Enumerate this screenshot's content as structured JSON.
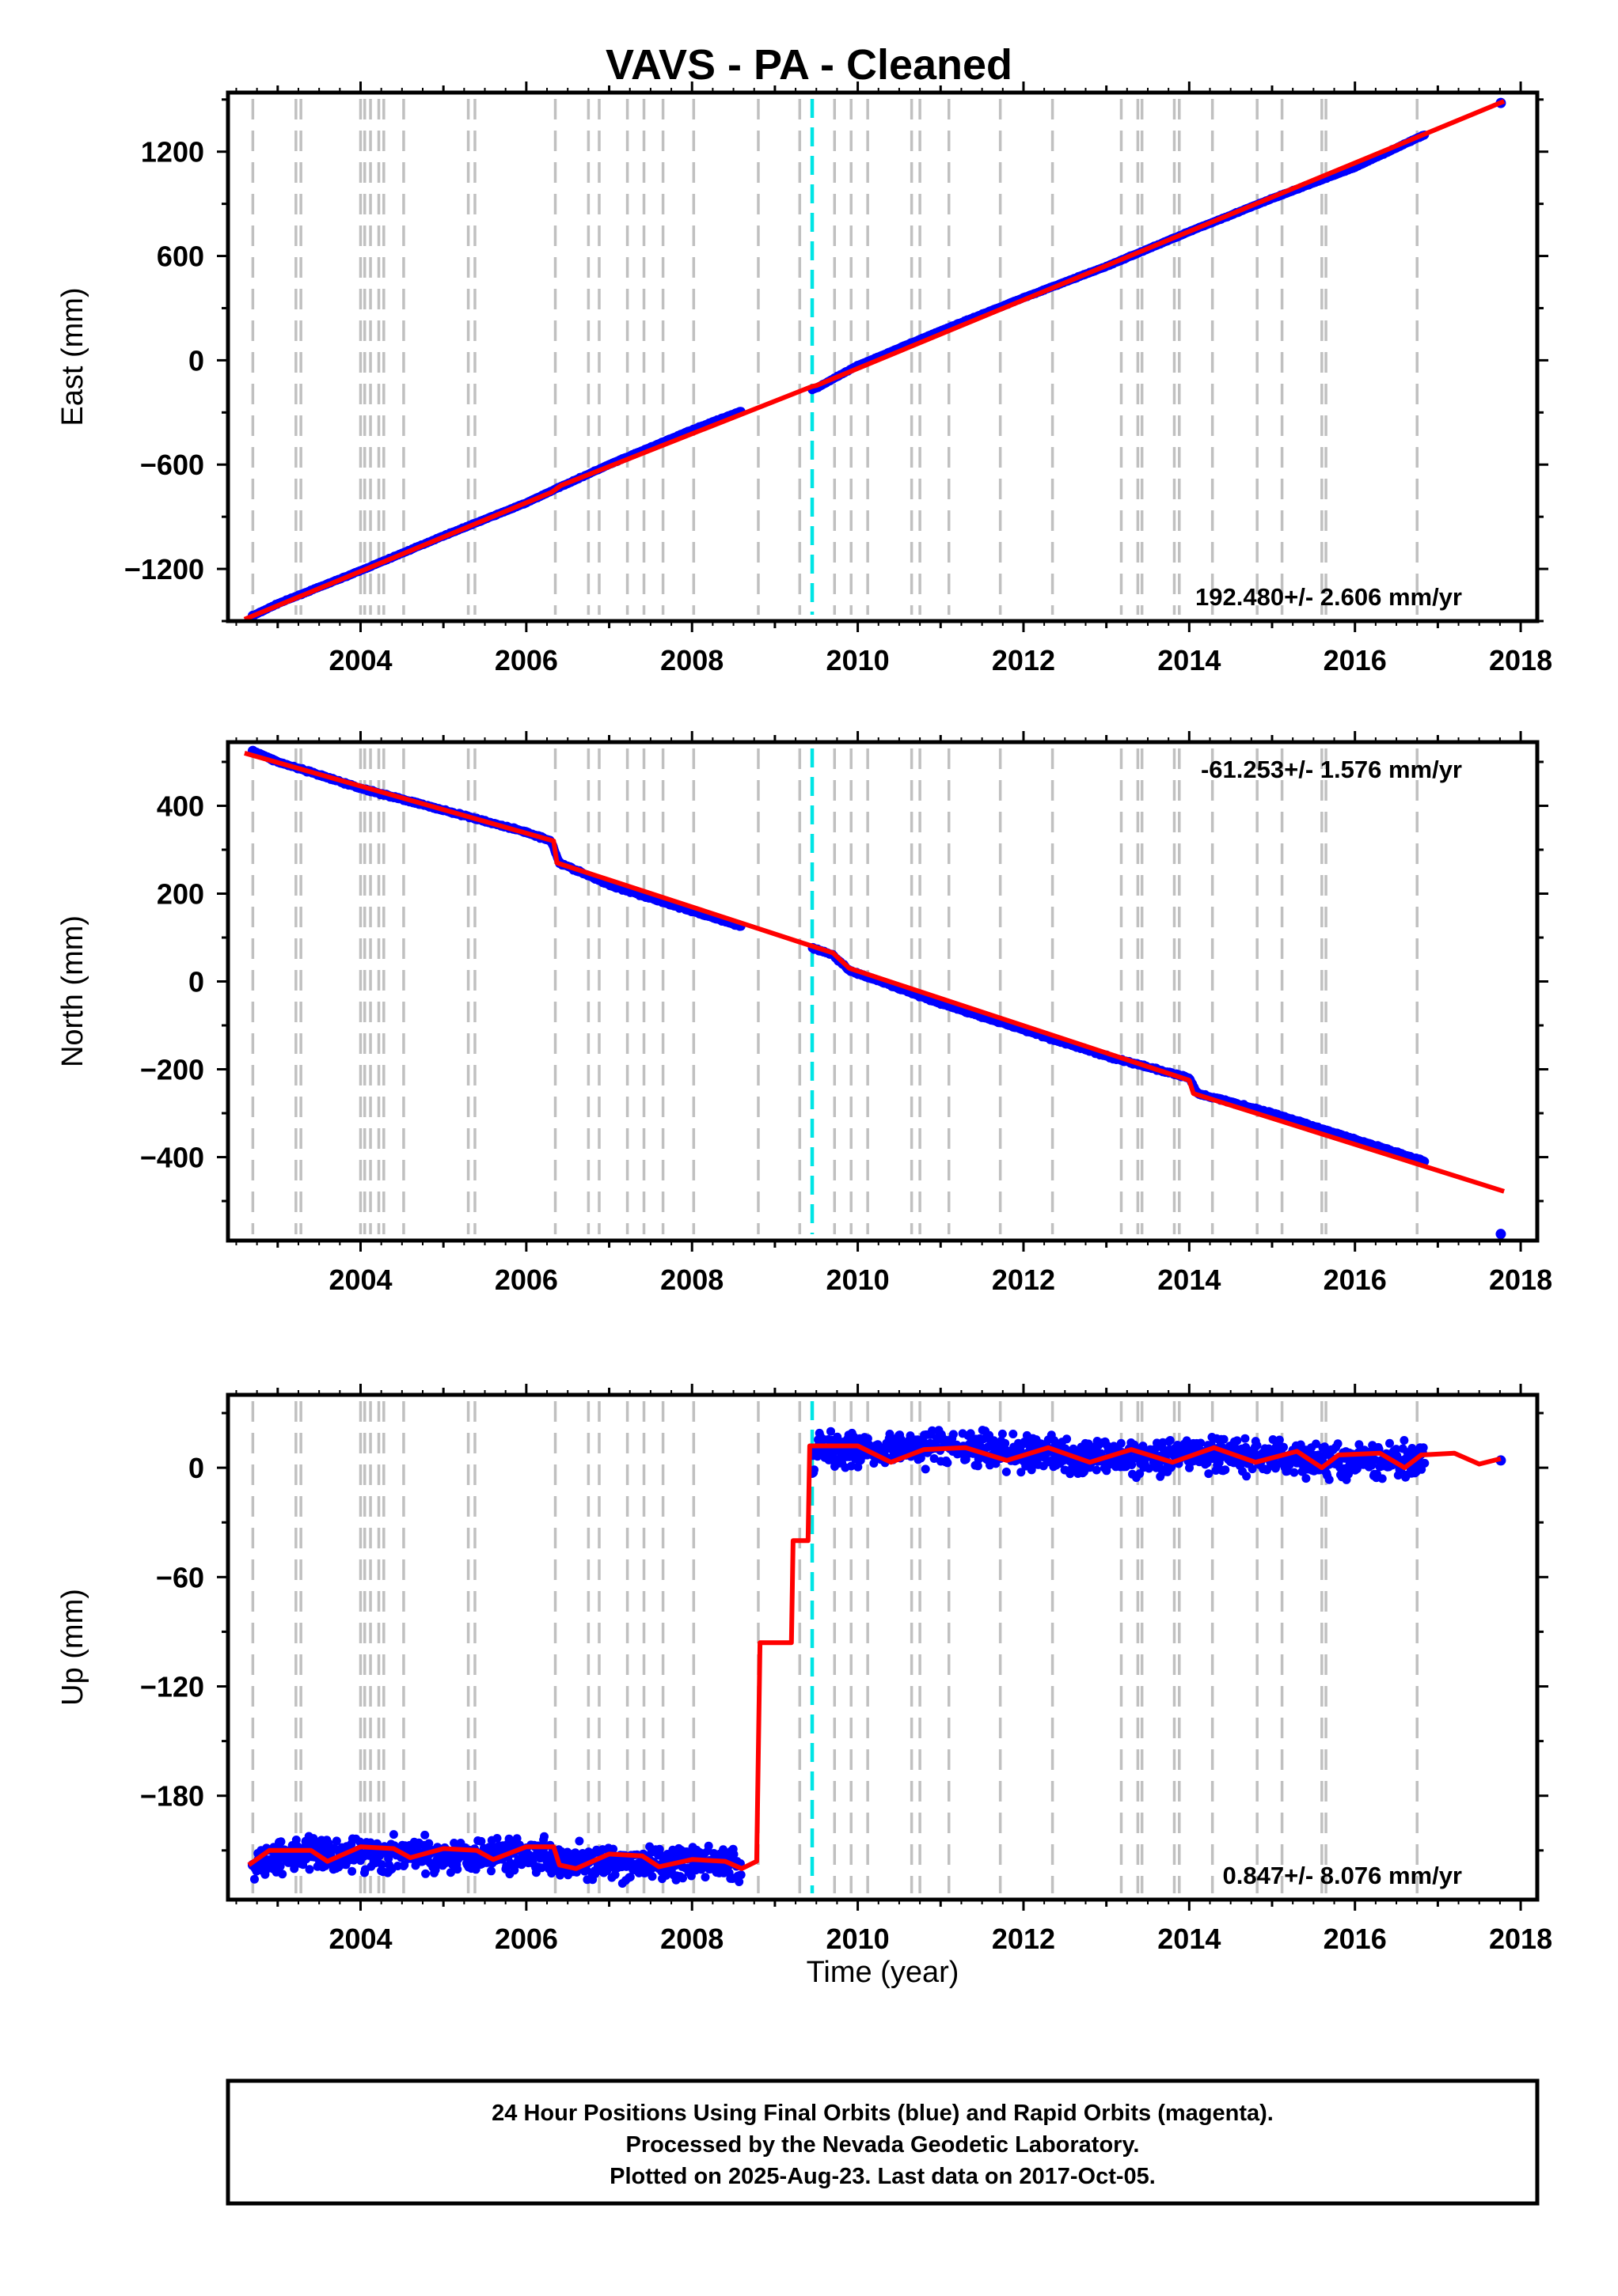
{
  "title": "VAVS  - PA - Cleaned",
  "xlabel": "Time (year)",
  "footer": [
    "24 Hour Positions Using Final Orbits (blue) and Rapid Orbits (magenta).",
    "Processed by the Nevada Geodetic Laboratory.",
    "Plotted on 2025-Aug-23. Last data on 2017-Oct-05."
  ],
  "colors": {
    "data": "#0000ff",
    "model": "#ff0000",
    "event": "#c0c0c0",
    "equipment": "#00e5e5"
  },
  "chart_data": [
    {
      "type": "scatter",
      "ylabel": "East (mm)",
      "rate_text": "192.480+/- 2.606 mm/yr",
      "xlim": [
        2002.4,
        2018.2
      ],
      "ylim": [
        -1500,
        1540
      ],
      "x_ticks": [
        2004,
        2006,
        2008,
        2010,
        2012,
        2014,
        2016,
        2018
      ],
      "x_tick_labels": [
        "2004",
        "2006",
        "2008",
        "2010",
        "2012",
        "2014",
        "2016",
        "2018"
      ],
      "y_ticks": [
        -1200,
        -600,
        0,
        600,
        1200
      ],
      "y_tick_labels": [
        "−1200",
        "−600",
        "0",
        "600",
        "1200"
      ],
      "series": [
        {
          "role": "observed",
          "x": [
            2002.7,
            2003.0,
            2004.0,
            2005.0,
            2006.0,
            2006.4,
            2007.0,
            2008.0,
            2008.6,
            2009.5,
            2010.0,
            2011.0,
            2012.0,
            2013.0,
            2014.0,
            2015.0,
            2016.0,
            2016.85,
            2017.76
          ],
          "y": [
            -1470,
            -1400,
            -1210,
            -1010,
            -820,
            -730,
            -600,
            -400,
            -290,
            -160,
            -30,
            170,
            360,
            540,
            740,
            930,
            1110,
            1300,
            1480
          ]
        },
        {
          "role": "model",
          "x": [
            2002.6,
            2006.3,
            2006.42,
            2009.45,
            2009.5,
            2017.8
          ],
          "y": [
            -1490,
            -760,
            -720,
            -150,
            -145,
            1490
          ]
        }
      ]
    },
    {
      "type": "scatter",
      "ylabel": "North (mm)",
      "rate_text": "-61.253+/- 1.576 mm/yr",
      "xlim": [
        2002.4,
        2018.2
      ],
      "ylim": [
        -590,
        545
      ],
      "x_ticks": [
        2004,
        2006,
        2008,
        2010,
        2012,
        2014,
        2016,
        2018
      ],
      "x_tick_labels": [
        "2004",
        "2006",
        "2008",
        "2010",
        "2012",
        "2014",
        "2016",
        "2018"
      ],
      "y_ticks": [
        -400,
        -200,
        0,
        200,
        400
      ],
      "y_tick_labels": [
        "−400",
        "−200",
        "0",
        "200",
        "400"
      ],
      "series": [
        {
          "role": "observed",
          "x": [
            2002.7,
            2003.0,
            2004.0,
            2005.0,
            2006.0,
            2006.3,
            2006.4,
            2007.0,
            2008.0,
            2008.6,
            2009.4,
            2009.7,
            2009.9,
            2011.0,
            2012.0,
            2013.0,
            2014.0,
            2014.1,
            2015.0,
            2016.0,
            2016.85,
            2017.76
          ],
          "y": [
            525,
            500,
            440,
            390,
            340,
            320,
            270,
            220,
            160,
            125,
            80,
            60,
            25,
            -50,
            -110,
            -170,
            -220,
            -255,
            -300,
            -360,
            -410,
            -575
          ]
        },
        {
          "role": "model",
          "x": [
            2002.6,
            2006.33,
            2006.37,
            2009.7,
            2009.9,
            2014.0,
            2014.05,
            2017.8
          ],
          "y": [
            520,
            320,
            270,
            65,
            30,
            -225,
            -255,
            -478
          ]
        }
      ]
    },
    {
      "type": "scatter",
      "ylabel": "Up (mm)",
      "rate_text": "0.847+/- 8.076 mm/yr",
      "xlim": [
        2002.4,
        2018.2
      ],
      "ylim": [
        -237,
        40
      ],
      "x_ticks": [
        2004,
        2006,
        2008,
        2010,
        2012,
        2014,
        2016,
        2018
      ],
      "x_tick_labels": [
        "2004",
        "2006",
        "2008",
        "2010",
        "2012",
        "2014",
        "2016",
        "2018"
      ],
      "y_ticks": [
        -180,
        -120,
        -60,
        0
      ],
      "y_tick_labels": [
        "−180",
        "−120",
        "−60",
        "0"
      ],
      "series": [
        {
          "role": "observed",
          "x": [
            2002.7,
            2003.0,
            2004.0,
            2005.0,
            2006.0,
            2007.0,
            2008.0,
            2008.6,
            2009.5,
            2010.0,
            2011.0,
            2012.0,
            2013.0,
            2014.0,
            2015.0,
            2016.0,
            2016.85,
            2017.76
          ],
          "y": [
            -218,
            -212,
            -212,
            -213,
            -211,
            -219,
            -216,
            -218,
            12,
            10,
            12,
            8,
            5,
            8,
            5,
            3,
            5,
            4
          ]
        },
        {
          "role": "model",
          "x": [
            2002.65,
            2002.9,
            2003.4,
            2003.6,
            2004.0,
            2004.4,
            2004.6,
            2005.0,
            2005.4,
            2005.6,
            2006.0,
            2006.33,
            2006.4,
            2006.6,
            2007.0,
            2007.4,
            2007.6,
            2008.0,
            2008.4,
            2008.6,
            2008.78,
            2008.82,
            2009.2,
            2009.22,
            2009.4,
            2009.42,
            2010.0,
            2010.4,
            2010.8,
            2011.3,
            2011.8,
            2012.3,
            2012.8,
            2013.3,
            2013.8,
            2014.3,
            2014.8,
            2015.3,
            2015.6,
            2015.8,
            2016.3,
            2016.6,
            2016.8,
            2017.2,
            2017.5,
            2017.76
          ],
          "y": [
            -218,
            -210,
            -210,
            -216,
            -208,
            -209,
            -214,
            -209,
            -210,
            -215,
            -208,
            -208,
            -218,
            -220,
            -212,
            -213,
            -219,
            -215,
            -216,
            -220,
            -216,
            -96,
            -96,
            -40,
            -40,
            12,
            12,
            3,
            10,
            11,
            4,
            11,
            3,
            10,
            3,
            11,
            3,
            9,
            0,
            7,
            8,
            0,
            7,
            8,
            2,
            5
          ]
        }
      ]
    }
  ],
  "event_years": [
    2002.7,
    2003.22,
    2003.28,
    2004.0,
    2004.05,
    2004.12,
    2004.22,
    2004.28,
    2004.52,
    2005.3,
    2005.38,
    2006.35,
    2006.75,
    2006.88,
    2007.22,
    2007.42,
    2007.65,
    2008.02,
    2008.8,
    2009.3,
    2009.72,
    2009.92,
    2010.12,
    2010.65,
    2010.75,
    2011.1,
    2011.72,
    2012.35,
    2013.18,
    2013.38,
    2013.43,
    2013.82,
    2013.88,
    2014.28,
    2014.82,
    2015.12,
    2015.6,
    2015.65,
    2016.75
  ],
  "equipment_years": [
    2009.45
  ]
}
